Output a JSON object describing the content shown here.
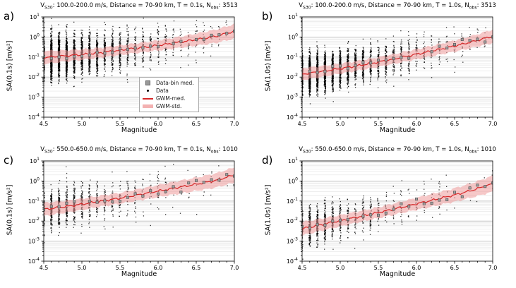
{
  "colors": {
    "median": "#d62728",
    "band": "#ef9a9a",
    "scatter": "#000000",
    "bin_fill": "#9e9e9e",
    "bin_edge": "#4d4d4d",
    "grid_major": "#c2c2c2",
    "grid_minor": "#dddddd",
    "axis": "#000000",
    "background": "#ffffff"
  },
  "legend": {
    "items": [
      {
        "marker": "square",
        "label": "Data-bin med."
      },
      {
        "marker": "dot",
        "label": "Data"
      },
      {
        "marker": "line",
        "label": "GWM-med."
      },
      {
        "marker": "band",
        "label": "GWM-std."
      }
    ]
  },
  "chart_data": [
    {
      "type": "scatter",
      "panel_label": "a)",
      "title_parts": [
        "V",
        "S30",
        ": 100.0-200.0 m/s,  Distance = 70-90 km, T = 0.1s, N",
        "obs",
        ": 3513"
      ],
      "ylabel": "SA(0.1s) [m/s²]",
      "xlabel": "Magnitude",
      "xlim": [
        4.5,
        7.0
      ],
      "x_ticks": [
        4.5,
        5.0,
        5.5,
        6.0,
        6.5,
        7.0
      ],
      "y_exps": [
        1,
        0,
        -1,
        -2,
        -3,
        -4
      ],
      "ylim_exp": [
        -4,
        1
      ],
      "n_points": 3513,
      "seed": 11,
      "scatter_spread": 0.5,
      "median_x": [
        4.5,
        4.75,
        5.0,
        5.25,
        5.5,
        5.75,
        6.0,
        6.25,
        6.5,
        6.75,
        7.0
      ],
      "median_logy": [
        -1.02,
        -0.95,
        -0.88,
        -0.78,
        -0.66,
        -0.54,
        -0.42,
        -0.28,
        -0.13,
        0.03,
        0.28
      ],
      "band_halfwidth": [
        0.33,
        0.28,
        0.26,
        0.24,
        0.24,
        0.24,
        0.25,
        0.27,
        0.3,
        0.33,
        0.36
      ],
      "has_legend": true
    },
    {
      "type": "scatter",
      "panel_label": "b)",
      "title_parts": [
        "V",
        "S30",
        ": 100.0-200.0 m/s,  Distance = 70-90 km, T = 1.0s, N",
        "obs",
        ": 3513"
      ],
      "ylabel": "SA(1.0s) [m/s²]",
      "xlabel": "Magnitude",
      "xlim": [
        4.5,
        7.0
      ],
      "x_ticks": [
        4.5,
        5.0,
        5.5,
        6.0,
        6.5,
        7.0
      ],
      "y_exps": [
        1,
        0,
        -1,
        -2,
        -3,
        -4
      ],
      "ylim_exp": [
        -4,
        1
      ],
      "n_points": 3513,
      "seed": 22,
      "scatter_spread": 0.46,
      "median_x": [
        4.5,
        4.75,
        5.0,
        5.25,
        5.5,
        5.75,
        6.0,
        6.25,
        6.5,
        6.75,
        7.0
      ],
      "median_logy": [
        -1.85,
        -1.72,
        -1.58,
        -1.42,
        -1.25,
        -1.06,
        -0.86,
        -0.66,
        -0.45,
        -0.22,
        0.04
      ],
      "band_halfwidth": [
        0.3,
        0.27,
        0.25,
        0.24,
        0.24,
        0.24,
        0.25,
        0.26,
        0.28,
        0.3,
        0.33
      ],
      "has_legend": false
    },
    {
      "type": "scatter",
      "panel_label": "c)",
      "title_parts": [
        "V",
        "S30",
        ": 550.0-650.0 m/s,  Distance = 70-90 km, T = 0.1s, N",
        "obs",
        ": 1010"
      ],
      "ylabel": "SA(0.1s) [m/s²]",
      "xlabel": "Magnitude",
      "xlim": [
        4.5,
        7.0
      ],
      "x_ticks": [
        4.5,
        5.0,
        5.5,
        6.0,
        6.5,
        7.0
      ],
      "y_exps": [
        1,
        0,
        -1,
        -2,
        -3,
        -4
      ],
      "ylim_exp": [
        -4,
        1
      ],
      "n_points": 1010,
      "seed": 33,
      "scatter_spread": 0.52,
      "median_x": [
        4.5,
        4.75,
        5.0,
        5.25,
        5.5,
        5.75,
        6.0,
        6.25,
        6.5,
        6.75,
        7.0
      ],
      "median_logy": [
        -1.42,
        -1.3,
        -1.16,
        -1.0,
        -0.86,
        -0.68,
        -0.5,
        -0.33,
        -0.16,
        0.02,
        0.3
      ],
      "band_halfwidth": [
        0.33,
        0.3,
        0.28,
        0.27,
        0.27,
        0.28,
        0.3,
        0.32,
        0.33,
        0.35,
        0.38
      ],
      "has_legend": false
    },
    {
      "type": "scatter",
      "panel_label": "d)",
      "title_parts": [
        "V",
        "S30",
        ": 550.0-650.0 m/s,  Distance = 70-90 km, T = 1.0s, N",
        "obs",
        ": 1010"
      ],
      "ylabel": "SA(1.0s) [m/s²]",
      "xlabel": "Magnitude",
      "xlim": [
        4.5,
        7.0
      ],
      "x_ticks": [
        4.5,
        5.0,
        5.5,
        6.0,
        6.5,
        7.0
      ],
      "y_exps": [
        1,
        0,
        -1,
        -2,
        -3,
        -4
      ],
      "ylim_exp": [
        -4,
        1
      ],
      "n_points": 1010,
      "seed": 44,
      "scatter_spread": 0.48,
      "median_x": [
        4.5,
        4.75,
        5.0,
        5.25,
        5.5,
        5.75,
        6.0,
        6.25,
        6.5,
        6.75,
        7.0
      ],
      "median_logy": [
        -2.38,
        -2.18,
        -1.98,
        -1.78,
        -1.58,
        -1.36,
        -1.14,
        -0.92,
        -0.7,
        -0.44,
        -0.14
      ],
      "band_halfwidth": [
        0.33,
        0.3,
        0.28,
        0.27,
        0.27,
        0.28,
        0.3,
        0.32,
        0.34,
        0.36,
        0.4
      ],
      "has_legend": false
    }
  ]
}
